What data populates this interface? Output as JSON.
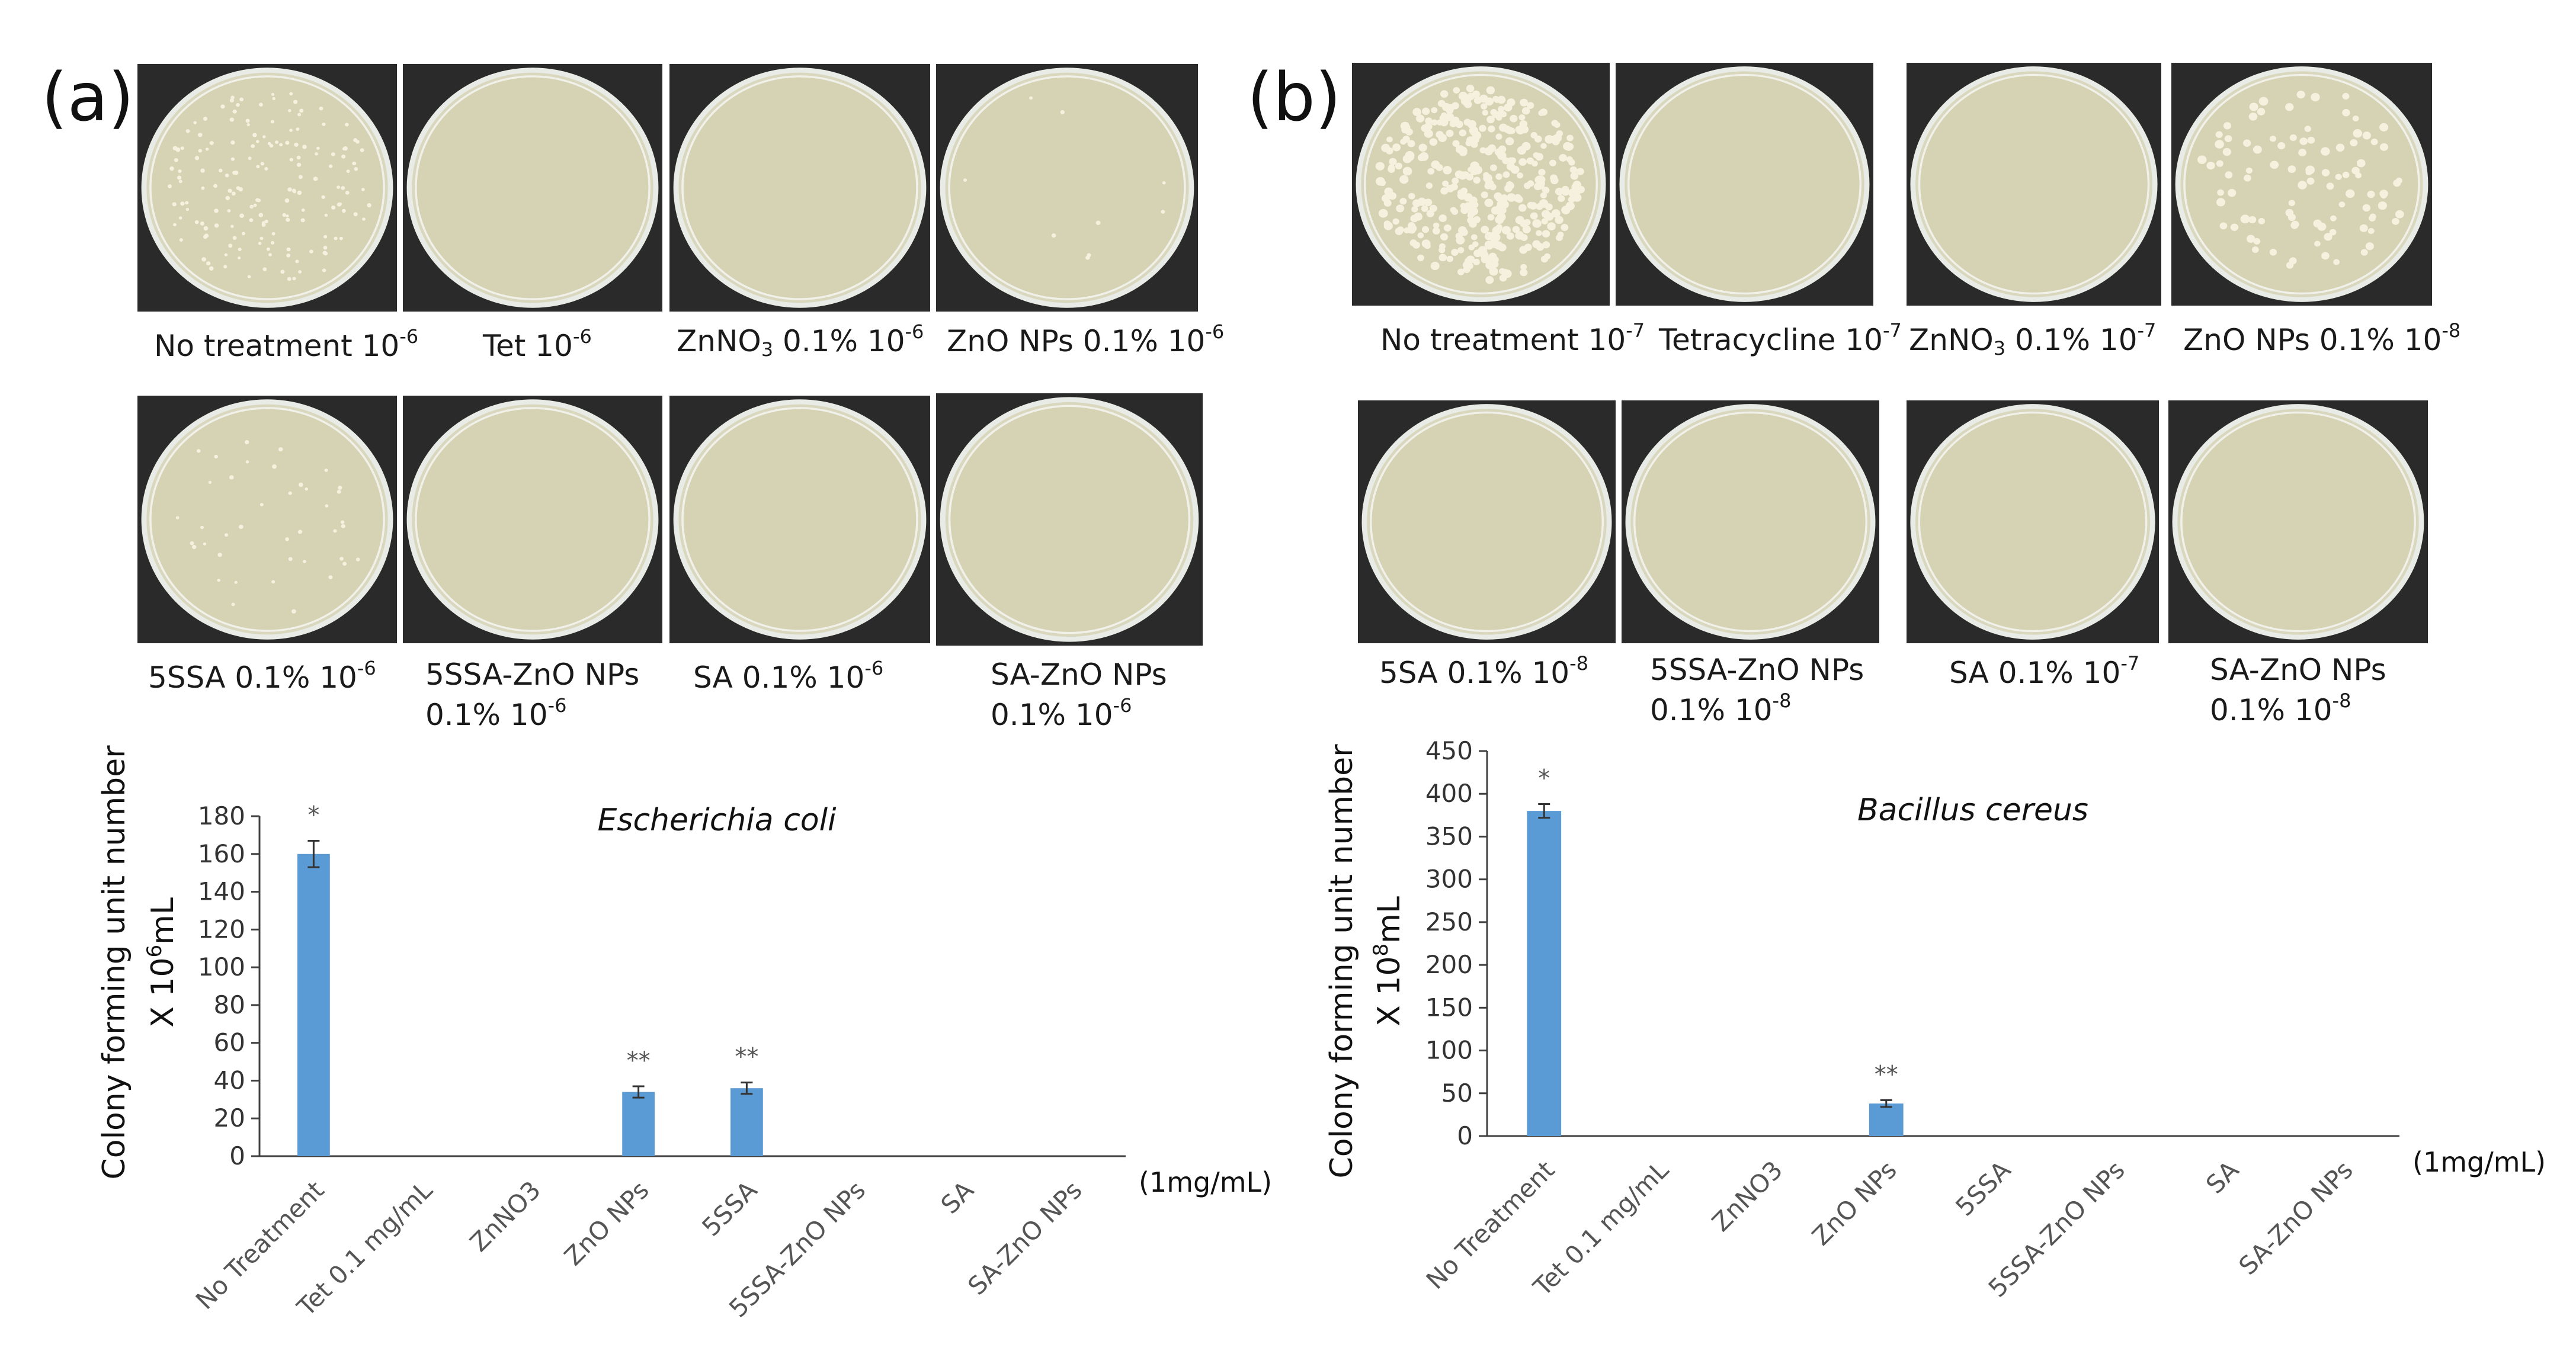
{
  "panels": {
    "a": "(a)",
    "b": "(b)"
  },
  "plates_a": [
    {
      "pre": "No treatment 10",
      "sub": "",
      "post": "",
      "exp": "-6",
      "l2": "",
      "l2exp": "",
      "colonies": 170,
      "big": false
    },
    {
      "pre": "Tet 10",
      "sub": "",
      "post": "",
      "exp": "-6",
      "l2": "",
      "l2exp": "",
      "colonies": 0,
      "big": false
    },
    {
      "pre": "ZnNO",
      "sub": "3",
      "post": " 0.1% 10",
      "exp": "-6",
      "l2": "",
      "l2exp": "",
      "colonies": 0,
      "big": false
    },
    {
      "pre": "ZnO NPs 0.1% 10",
      "sub": "",
      "post": "",
      "exp": "-6",
      "l2": "",
      "l2exp": "",
      "colonies": 9,
      "big": false
    },
    {
      "pre": "5SSA 0.1% 10",
      "sub": "",
      "post": "",
      "exp": "-6",
      "l2": "",
      "l2exp": "",
      "colonies": 40,
      "big": false
    },
    {
      "pre": "5SSA-ZnO NPs",
      "sub": "",
      "post": "",
      "exp": "",
      "l2": "0.1% 10",
      "l2exp": "-6",
      "colonies": 0,
      "big": false
    },
    {
      "pre": "SA 0.1% 10",
      "sub": "",
      "post": "",
      "exp": "-6",
      "l2": "",
      "l2exp": "",
      "colonies": 0,
      "big": false
    },
    {
      "pre": "SA-ZnO NPs",
      "sub": "",
      "post": "",
      "exp": "",
      "l2": "0.1% 10",
      "l2exp": "-6",
      "colonies": 0,
      "big": false
    }
  ],
  "plates_b": [
    {
      "pre": "No treatment 10",
      "sub": "",
      "post": "",
      "exp": "-7",
      "l2": "",
      "l2exp": "",
      "colonies": 380,
      "big": true
    },
    {
      "pre": "Tetracycline 10",
      "sub": "",
      "post": "",
      "exp": "-7",
      "l2": "",
      "l2exp": "",
      "colonies": 0,
      "big": true
    },
    {
      "pre": "ZnNO",
      "sub": "3",
      "post": " 0.1% 10",
      "exp": "-7",
      "l2": "",
      "l2exp": "",
      "colonies": 0,
      "big": true
    },
    {
      "pre": "ZnO NPs 0.1% 10",
      "sub": "",
      "post": "",
      "exp": "-8",
      "l2": "",
      "l2exp": "",
      "colonies": 95,
      "big": true
    },
    {
      "pre": "5SA 0.1% 10",
      "sub": "",
      "post": "",
      "exp": "-8",
      "l2": "",
      "l2exp": "",
      "colonies": 0,
      "big": true
    },
    {
      "pre": "5SSA-ZnO NPs",
      "sub": "",
      "post": "",
      "exp": "",
      "l2": "0.1% 10",
      "l2exp": "-8",
      "colonies": 0,
      "big": true
    },
    {
      "pre": "SA 0.1% 10",
      "sub": "",
      "post": "",
      "exp": "-7",
      "l2": "",
      "l2exp": "",
      "colonies": 0,
      "big": true
    },
    {
      "pre": "SA-ZnO NPs",
      "sub": "",
      "post": "",
      "exp": "",
      "l2": "0.1% 10",
      "l2exp": "-8",
      "colonies": 0,
      "big": true
    }
  ],
  "chart_data": [
    {
      "type": "bar",
      "title": "Escherichia coli",
      "ylabel_line1": "Colony forming unit number",
      "ylabel_line2_pre": "X 10",
      "ylabel_line2_exp": "6",
      "ylabel_line2_post": "mL",
      "unit_note": "(1mg/mL)",
      "categories": [
        "No Treatment",
        "Tet 0.1 mg/mL",
        "ZnNO3",
        "ZnO NPs",
        "5SSA",
        "5SSA-ZnO NPs",
        "SA",
        "SA-ZnO NPs"
      ],
      "values": [
        160,
        0,
        0,
        34,
        36,
        0,
        0,
        0
      ],
      "errors": [
        7,
        0,
        0,
        3,
        3,
        0,
        0,
        0
      ],
      "significance": [
        "*",
        "",
        "",
        "**",
        "**",
        "",
        "",
        ""
      ],
      "ylim": [
        0,
        180
      ],
      "yticks": [
        0,
        20,
        40,
        60,
        80,
        100,
        120,
        140,
        160,
        180
      ],
      "bar_color": "#5b9bd5",
      "grid": false
    },
    {
      "type": "bar",
      "title": "Bacillus cereus",
      "ylabel_line1": "Colony forming unit number",
      "ylabel_line2_pre": "X 10",
      "ylabel_line2_exp": "8",
      "ylabel_line2_post": "mL",
      "unit_note": "(1mg/mL)",
      "categories": [
        "No Treatment",
        "Tet 0.1 mg/mL",
        "ZnNO3",
        "ZnO NPs",
        "5SSA",
        "5SSA-ZnO NPs",
        "SA",
        "SA-ZnO NPs"
      ],
      "values": [
        380,
        0,
        0,
        38,
        0,
        0,
        0,
        0
      ],
      "errors": [
        8,
        0,
        0,
        4,
        0,
        0,
        0,
        0
      ],
      "significance": [
        "*",
        "",
        "",
        "**",
        "",
        "",
        "",
        ""
      ],
      "ylim": [
        0,
        450
      ],
      "yticks": [
        0,
        50,
        100,
        150,
        200,
        250,
        300,
        350,
        400,
        450
      ],
      "bar_color": "#5b9bd5",
      "grid": false
    }
  ]
}
